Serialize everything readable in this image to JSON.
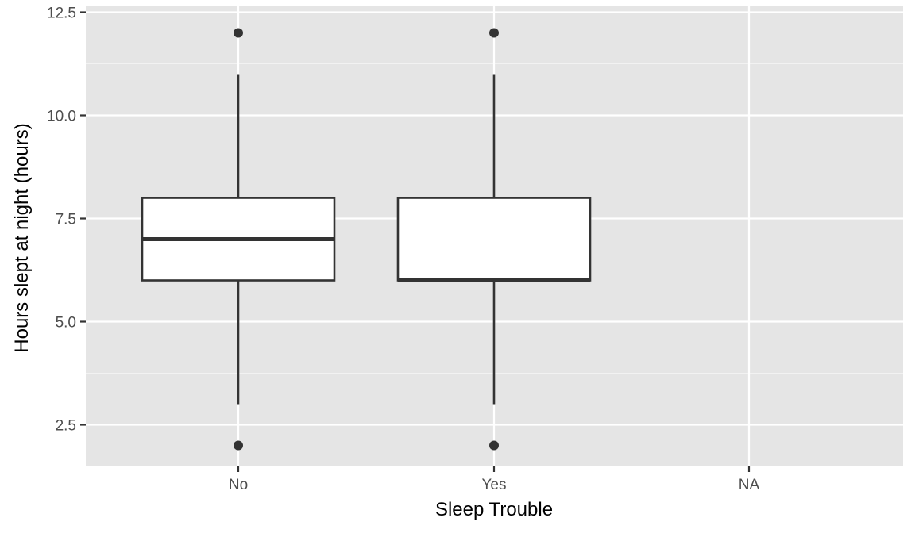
{
  "chart_data": {
    "type": "boxplot",
    "title": "",
    "xlabel": "Sleep Trouble",
    "ylabel": "Hours slept at night (hours)",
    "categories": [
      "No",
      "Yes",
      "NA"
    ],
    "y_ticks": [
      {
        "value": 2.5,
        "label": "2.5"
      },
      {
        "value": 5.0,
        "label": "5.0"
      },
      {
        "value": 7.5,
        "label": "7.5"
      },
      {
        "value": 10.0,
        "label": "10.0"
      },
      {
        "value": 12.5,
        "label": "12.5"
      }
    ],
    "ylim": [
      1.5,
      12.5
    ],
    "grid": true,
    "boxes": [
      {
        "category": "No",
        "whisker_low": 3,
        "q1": 6,
        "median": 7,
        "q3": 8,
        "whisker_high": 11,
        "outliers": [
          2,
          12
        ]
      },
      {
        "category": "Yes",
        "whisker_low": 3,
        "q1": 6,
        "median": 6,
        "q3": 8,
        "whisker_high": 11,
        "outliers": [
          2,
          12
        ]
      }
    ],
    "colors": {
      "panel_background": "#e5e5e5",
      "grid_major": "#ffffff",
      "grid_minor": "#f2f2f2",
      "box_fill": "#ffffff",
      "box_stroke": "#333333",
      "outlier": "#333333",
      "tick_label": "#4d4d4d",
      "axis_title": "#000000"
    }
  }
}
